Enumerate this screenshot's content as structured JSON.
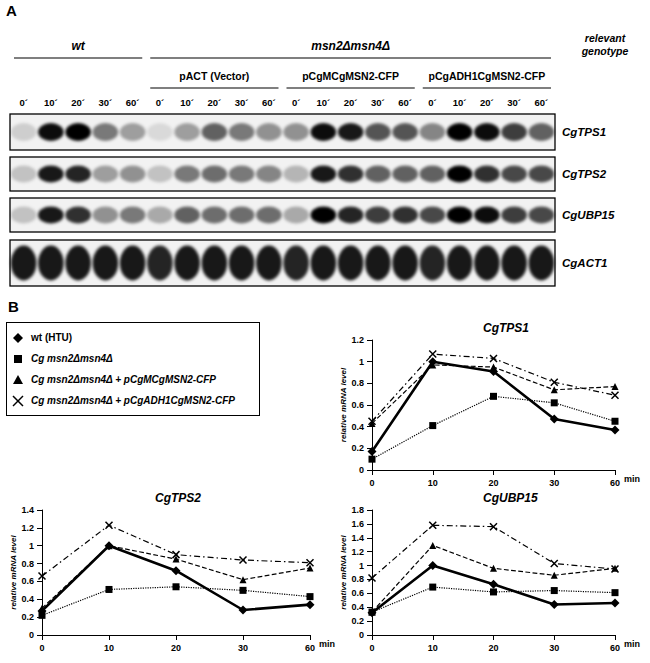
{
  "panel_a": {
    "label": "A",
    "genotype_label": "relevant genotype",
    "strains": [
      {
        "genotype": "wt",
        "plasmid": null,
        "times": [
          "0´",
          "10´",
          "20´",
          "30´",
          "60´"
        ]
      },
      {
        "genotype": "msn2Δmsn4Δ",
        "plasmid": "pACT (Vector)",
        "times": [
          "0´",
          "10´",
          "20´",
          "30´",
          "60´"
        ]
      },
      {
        "genotype": "msn2Δmsn4Δ",
        "plasmid": "pCgMCgMSN2-CFP",
        "times": [
          "0´",
          "10´",
          "20´",
          "30´",
          "60´"
        ]
      },
      {
        "genotype": "msn2Δmsn4Δ",
        "plasmid": "pCgADH1CgMSN2-CFP",
        "times": [
          "0´",
          "10´",
          "20´",
          "30´",
          "60´"
        ]
      }
    ],
    "genes": [
      {
        "name": "CgTPS1",
        "band_intensity": [
          0.15,
          0.95,
          1.0,
          0.5,
          0.35,
          0.1,
          0.35,
          0.6,
          0.5,
          0.4,
          0.4,
          0.95,
          0.9,
          0.65,
          0.65,
          0.45,
          1.0,
          0.95,
          0.75,
          0.6
        ]
      },
      {
        "name": "CgTPS2",
        "band_intensity": [
          0.2,
          0.9,
          0.85,
          0.35,
          0.4,
          0.2,
          0.5,
          0.55,
          0.5,
          0.45,
          0.25,
          0.9,
          0.8,
          0.6,
          0.6,
          0.6,
          1.0,
          0.8,
          0.7,
          0.7
        ]
      },
      {
        "name": "CgUBP15",
        "band_intensity": [
          0.2,
          0.9,
          0.8,
          0.4,
          0.5,
          0.3,
          0.6,
          0.55,
          0.55,
          0.55,
          0.3,
          1.0,
          0.85,
          0.75,
          0.8,
          0.7,
          1.0,
          0.95,
          0.75,
          0.7
        ]
      },
      {
        "name": "CgACT1",
        "band_intensity": [
          0.9,
          0.9,
          0.9,
          0.9,
          0.9,
          0.85,
          0.9,
          0.9,
          0.9,
          0.9,
          0.85,
          0.9,
          0.9,
          0.9,
          0.9,
          0.85,
          0.9,
          0.9,
          0.9,
          0.9
        ]
      }
    ]
  },
  "panel_b": {
    "label": "B",
    "legend": [
      {
        "name": "wt (HTU)",
        "marker": "diamond",
        "line_style": "solid"
      },
      {
        "name": "Cg msn2Δmsn4Δ",
        "marker": "square",
        "line_style": "dotted"
      },
      {
        "name": "Cg msn2Δmsn4Δ + pCgMCgMSN2-CFP",
        "marker": "triangle",
        "line_style": "dashed"
      },
      {
        "name": "Cg msn2Δmsn4Δ + pCgADH1CgMSN2-CFP",
        "marker": "cross",
        "line_style": "dashdot"
      }
    ]
  },
  "chart_data": [
    {
      "type": "line",
      "title": "CgTPS1",
      "categories": [
        "0",
        "10",
        "20",
        "30",
        "60"
      ],
      "x_label": "min",
      "y_label": "relative mRNA level",
      "ylim": [
        0,
        1.2
      ],
      "yticks": [
        0,
        0.2,
        0.4,
        0.6,
        0.8,
        1,
        1.2
      ],
      "grid": false,
      "series": [
        {
          "name": "wt (HTU)",
          "color": "#000000",
          "marker": "diamond",
          "line_style": "solid",
          "values": [
            0.17,
            1.0,
            0.91,
            0.47,
            0.37
          ]
        },
        {
          "name": "Cg msn2Δmsn4Δ",
          "color": "#000000",
          "marker": "square",
          "line_style": "dotted",
          "values": [
            0.1,
            0.41,
            0.68,
            0.62,
            0.45
          ]
        },
        {
          "name": "Cg msn2Δmsn4Δ + pCgMCgMSN2-CFP",
          "color": "#000000",
          "marker": "triangle",
          "line_style": "dashed",
          "values": [
            0.43,
            0.97,
            0.95,
            0.74,
            0.77
          ]
        },
        {
          "name": "Cg msn2Δmsn4Δ + pCgADH1CgMSN2-CFP",
          "color": "#000000",
          "marker": "cross",
          "line_style": "dashdot",
          "values": [
            0.45,
            1.07,
            1.03,
            0.81,
            0.69
          ]
        }
      ]
    },
    {
      "type": "line",
      "title": "CgTPS2",
      "categories": [
        "0",
        "10",
        "20",
        "30",
        "60"
      ],
      "x_label": "min",
      "y_label": "relative mRNA level",
      "ylim": [
        0,
        1.4
      ],
      "yticks": [
        0,
        0.2,
        0.4,
        0.6,
        0.8,
        1,
        1.2,
        1.4
      ],
      "grid": false,
      "series": [
        {
          "name": "wt (HTU)",
          "color": "#000000",
          "marker": "diamond",
          "line_style": "solid",
          "values": [
            0.27,
            1.0,
            0.72,
            0.28,
            0.34
          ]
        },
        {
          "name": "Cg msn2Δmsn4Δ",
          "color": "#000000",
          "marker": "square",
          "line_style": "dotted",
          "values": [
            0.22,
            0.51,
            0.54,
            0.5,
            0.43
          ]
        },
        {
          "name": "Cg msn2Δmsn4Δ + pCgMCgMSN2-CFP",
          "color": "#000000",
          "marker": "triangle",
          "line_style": "dashed",
          "values": [
            0.3,
            1.0,
            0.85,
            0.62,
            0.75
          ]
        },
        {
          "name": "Cg msn2Δmsn4Δ + pCgADH1CgMSN2-CFP",
          "color": "#000000",
          "marker": "cross",
          "line_style": "dashdot",
          "values": [
            0.66,
            1.23,
            0.9,
            0.84,
            0.81
          ]
        }
      ]
    },
    {
      "type": "line",
      "title": "CgUBP15",
      "categories": [
        "0",
        "10",
        "20",
        "30",
        "60"
      ],
      "x_label": "min",
      "y_label": "relative mRNA level",
      "ylim": [
        0,
        1.8
      ],
      "yticks": [
        0,
        0.2,
        0.4,
        0.6,
        0.8,
        1,
        1.2,
        1.4,
        1.6,
        1.8
      ],
      "grid": false,
      "series": [
        {
          "name": "wt (HTU)",
          "color": "#000000",
          "marker": "diamond",
          "line_style": "solid",
          "values": [
            0.32,
            1.0,
            0.73,
            0.44,
            0.46
          ]
        },
        {
          "name": "Cg msn2Δmsn4Δ",
          "color": "#000000",
          "marker": "square",
          "line_style": "dotted",
          "values": [
            0.33,
            0.69,
            0.62,
            0.64,
            0.61
          ]
        },
        {
          "name": "Cg msn2Δmsn4Δ + pCgMCgMSN2-CFP",
          "color": "#000000",
          "marker": "triangle",
          "line_style": "dashed",
          "values": [
            0.33,
            1.29,
            0.96,
            0.86,
            0.96
          ]
        },
        {
          "name": "Cg msn2Δmsn4Δ + pCgADH1CgMSN2-CFP",
          "color": "#000000",
          "marker": "cross",
          "line_style": "dashdot",
          "values": [
            0.82,
            1.58,
            1.56,
            1.03,
            0.95
          ]
        }
      ]
    }
  ]
}
